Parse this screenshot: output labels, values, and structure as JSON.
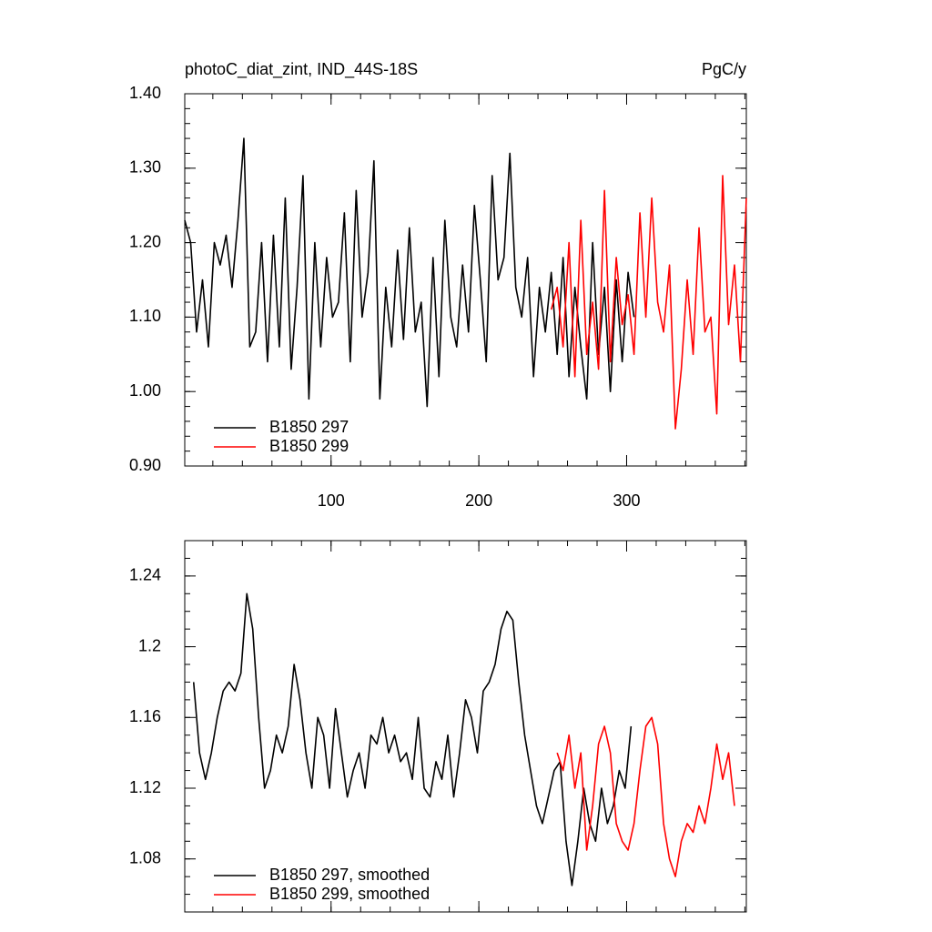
{
  "chart_data": [
    {
      "type": "line",
      "title": "photoC_diat_zint, IND_44S-18S",
      "units": "PgC/y",
      "xlim": [
        1,
        381
      ],
      "xticks": [
        100,
        200,
        300
      ],
      "ylim": [
        0.9,
        1.4
      ],
      "yticks": [
        {
          "value": 0.9,
          "label": "0.90"
        },
        {
          "value": 1.0,
          "label": "1.00"
        },
        {
          "value": 1.1,
          "label": "1.10"
        },
        {
          "value": 1.2,
          "label": "1.20"
        },
        {
          "value": 1.3,
          "label": "1.30"
        },
        {
          "value": 1.4,
          "label": "1.40"
        }
      ],
      "series": [
        {
          "name": "B1850 297",
          "color": "#000000",
          "x": [
            1,
            5,
            9,
            13,
            17,
            21,
            25,
            29,
            33,
            37,
            41,
            45,
            49,
            53,
            57,
            61,
            65,
            69,
            73,
            77,
            81,
            85,
            89,
            93,
            97,
            101,
            105,
            109,
            113,
            117,
            121,
            125,
            129,
            133,
            137,
            141,
            145,
            149,
            153,
            157,
            161,
            165,
            169,
            173,
            177,
            181,
            185,
            189,
            193,
            197,
            201,
            205,
            209,
            213,
            217,
            221,
            225,
            229,
            233,
            237,
            241,
            245,
            249,
            253,
            257,
            261,
            265,
            269,
            273,
            277,
            281,
            285,
            289,
            293,
            297,
            301,
            305
          ],
          "values": [
            1.23,
            1.2,
            1.08,
            1.15,
            1.06,
            1.2,
            1.17,
            1.21,
            1.14,
            1.23,
            1.34,
            1.06,
            1.08,
            1.2,
            1.04,
            1.21,
            1.06,
            1.26,
            1.03,
            1.14,
            1.29,
            0.99,
            1.2,
            1.06,
            1.18,
            1.1,
            1.12,
            1.24,
            1.04,
            1.27,
            1.1,
            1.16,
            1.31,
            0.99,
            1.14,
            1.06,
            1.19,
            1.07,
            1.22,
            1.08,
            1.12,
            0.98,
            1.18,
            1.02,
            1.23,
            1.1,
            1.06,
            1.17,
            1.08,
            1.25,
            1.15,
            1.04,
            1.29,
            1.15,
            1.18,
            1.32,
            1.14,
            1.1,
            1.18,
            1.02,
            1.14,
            1.08,
            1.16,
            1.05,
            1.18,
            1.02,
            1.14,
            1.06,
            0.99,
            1.2,
            1.05,
            1.14,
            1.0,
            1.15,
            1.04,
            1.16,
            1.1
          ]
        },
        {
          "name": "B1850 299",
          "color": "#ff0000",
          "x": [
            249,
            253,
            257,
            261,
            265,
            269,
            273,
            277,
            281,
            285,
            289,
            293,
            297,
            301,
            305,
            309,
            313,
            317,
            321,
            325,
            329,
            333,
            337,
            341,
            345,
            349,
            353,
            357,
            361,
            365,
            369,
            373,
            377,
            381
          ],
          "values": [
            1.11,
            1.14,
            1.06,
            1.2,
            1.02,
            1.23,
            1.05,
            1.12,
            1.03,
            1.27,
            1.04,
            1.18,
            1.09,
            1.13,
            1.05,
            1.24,
            1.1,
            1.26,
            1.12,
            1.08,
            1.17,
            0.95,
            1.03,
            1.15,
            1.05,
            1.22,
            1.08,
            1.1,
            0.97,
            1.29,
            1.09,
            1.17,
            1.04,
            1.26
          ]
        }
      ]
    },
    {
      "type": "line",
      "xlim": [
        1,
        381
      ],
      "ylim": [
        1.05,
        1.26
      ],
      "yticks": [
        1.08,
        1.12,
        1.16,
        1.2,
        1.24
      ],
      "series": [
        {
          "name": "B1850 297, smoothed",
          "color": "#000000",
          "x": [
            7,
            11,
            15,
            19,
            23,
            27,
            31,
            35,
            39,
            43,
            47,
            51,
            55,
            59,
            63,
            67,
            71,
            75,
            79,
            83,
            87,
            91,
            95,
            99,
            103,
            107,
            111,
            115,
            119,
            123,
            127,
            131,
            135,
            139,
            143,
            147,
            151,
            155,
            159,
            163,
            167,
            171,
            175,
            179,
            183,
            187,
            191,
            195,
            199,
            203,
            207,
            211,
            215,
            219,
            223,
            227,
            231,
            235,
            239,
            243,
            247,
            251,
            255,
            259,
            263,
            267,
            271,
            275,
            279,
            283,
            287,
            291,
            295,
            299,
            303
          ],
          "values": [
            1.18,
            1.14,
            1.125,
            1.14,
            1.16,
            1.175,
            1.18,
            1.175,
            1.185,
            1.23,
            1.21,
            1.16,
            1.12,
            1.13,
            1.15,
            1.14,
            1.155,
            1.19,
            1.17,
            1.14,
            1.12,
            1.16,
            1.15,
            1.12,
            1.165,
            1.14,
            1.115,
            1.13,
            1.14,
            1.12,
            1.15,
            1.145,
            1.16,
            1.14,
            1.15,
            1.135,
            1.14,
            1.125,
            1.16,
            1.12,
            1.115,
            1.135,
            1.125,
            1.15,
            1.115,
            1.14,
            1.17,
            1.16,
            1.14,
            1.175,
            1.18,
            1.19,
            1.21,
            1.22,
            1.215,
            1.18,
            1.15,
            1.13,
            1.11,
            1.1,
            1.115,
            1.13,
            1.135,
            1.09,
            1.065,
            1.09,
            1.12,
            1.1,
            1.09,
            1.12,
            1.1,
            1.11,
            1.13,
            1.12,
            1.155
          ]
        },
        {
          "name": "B1850 299, smoothed",
          "color": "#ff0000",
          "x": [
            253,
            257,
            261,
            265,
            269,
            273,
            277,
            281,
            285,
            289,
            293,
            297,
            301,
            305,
            309,
            313,
            317,
            321,
            325,
            329,
            333,
            337,
            341,
            345,
            349,
            353,
            357,
            361,
            365,
            369,
            373
          ],
          "values": [
            1.14,
            1.13,
            1.15,
            1.12,
            1.14,
            1.085,
            1.11,
            1.145,
            1.155,
            1.14,
            1.1,
            1.09,
            1.085,
            1.1,
            1.13,
            1.155,
            1.16,
            1.145,
            1.1,
            1.08,
            1.07,
            1.09,
            1.1,
            1.095,
            1.11,
            1.1,
            1.12,
            1.145,
            1.125,
            1.14,
            1.11
          ]
        }
      ]
    }
  ]
}
